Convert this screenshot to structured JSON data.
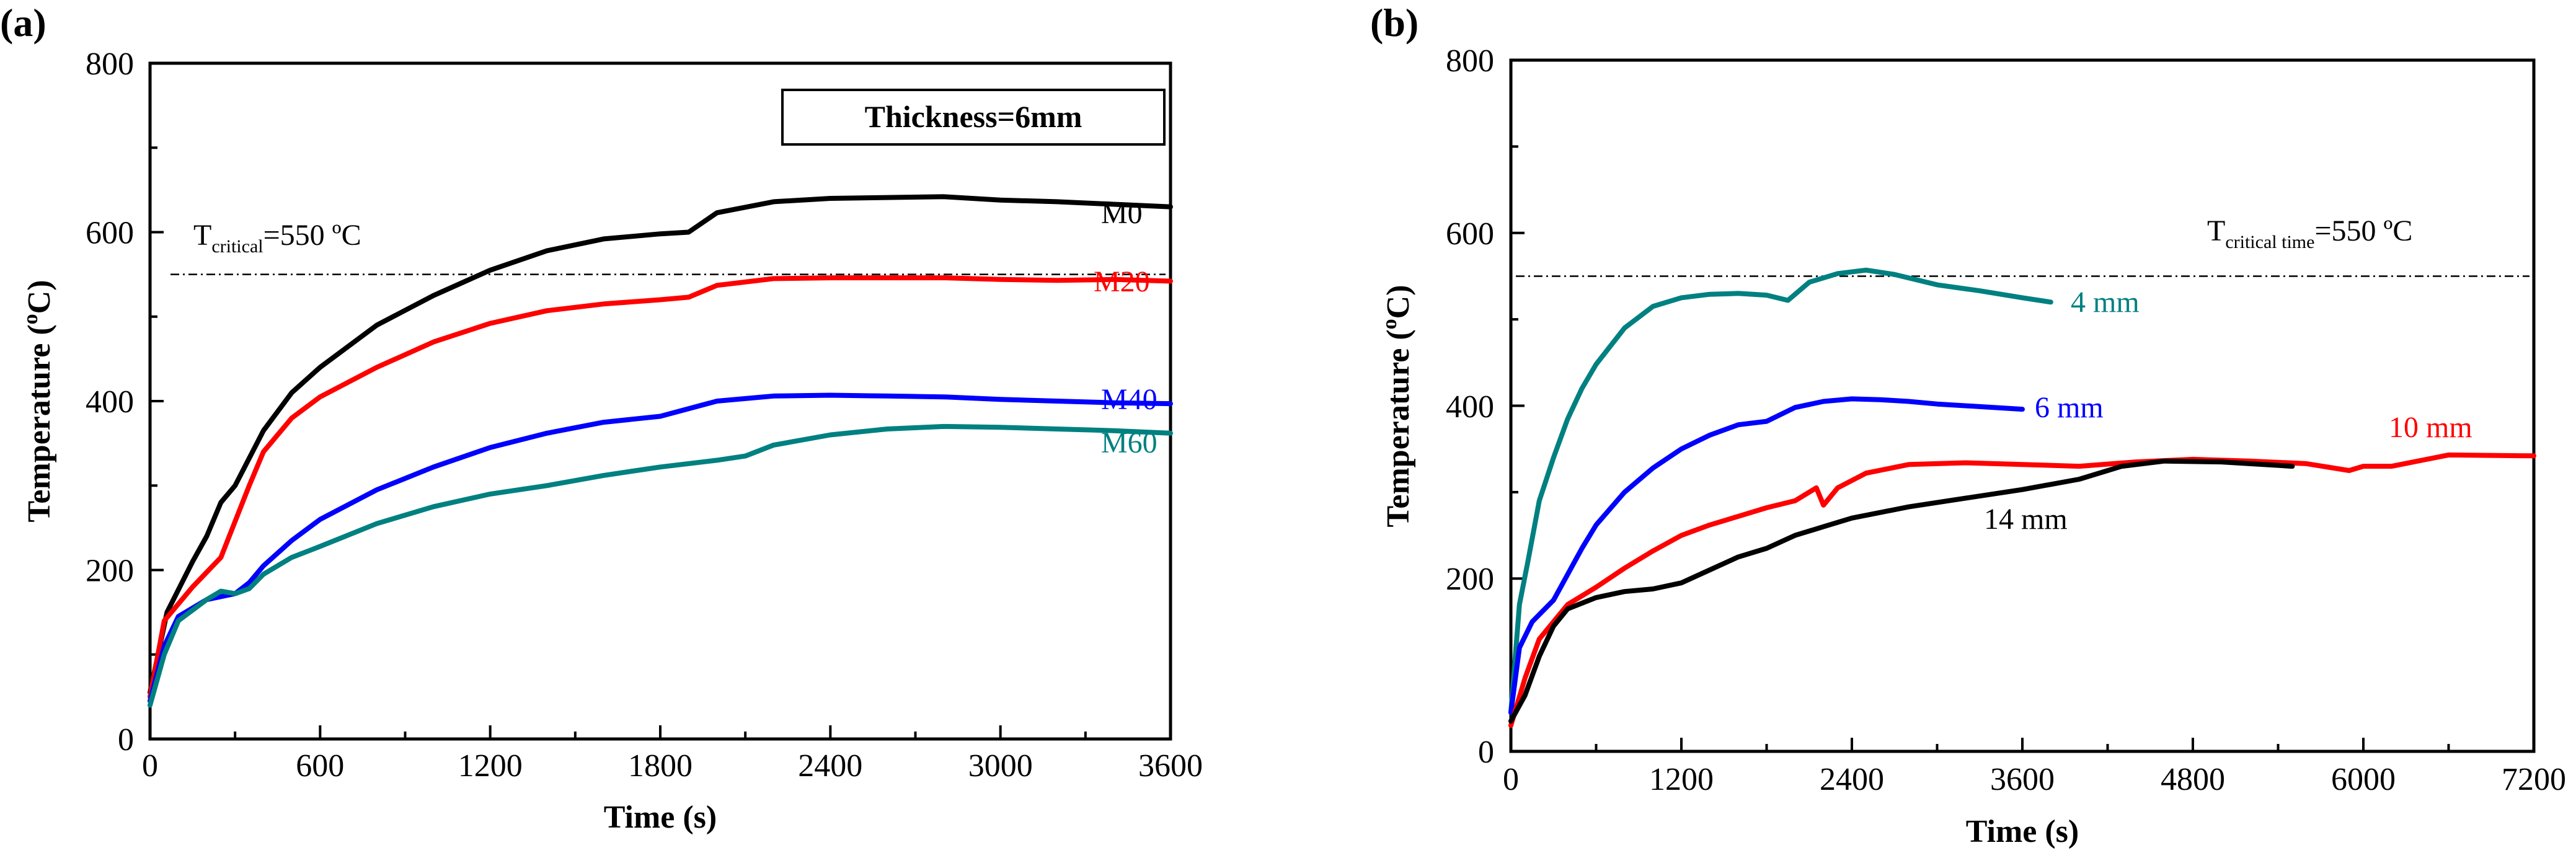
{
  "chart_data": [
    {
      "panel_label": "(a)",
      "type": "line",
      "xlabel": "Time (s)",
      "ylabel": {
        "prefix": "Temperature (",
        "sup": "o",
        "suffix": "C)"
      },
      "xlim": [
        0,
        3600
      ],
      "ylim": [
        0,
        800
      ],
      "xticks": [
        "0",
        "600",
        "1200",
        "1800",
        "2400",
        "3000",
        "3600"
      ],
      "yticks": [
        "0",
        "200",
        "400",
        "600",
        "800"
      ],
      "box_text": "Thickness=6mm",
      "critical": {
        "t": "T",
        "sub": "critical",
        "rest": "=550 ºC",
        "value": 550
      },
      "series": [
        {
          "name": "M0",
          "color": "#000000",
          "x": [
            0,
            60,
            150,
            200,
            250,
            300,
            400,
            500,
            600,
            800,
            1000,
            1200,
            1400,
            1600,
            1800,
            1900,
            2000,
            2200,
            2400,
            2600,
            2800,
            3000,
            3200,
            3400,
            3600
          ],
          "y": [
            55,
            150,
            210,
            240,
            280,
            300,
            365,
            410,
            440,
            490,
            525,
            555,
            578,
            592,
            598,
            600,
            623,
            636,
            640,
            641,
            642,
            638,
            636,
            633,
            630
          ]
        },
        {
          "name": "M20",
          "color": "#ff0000",
          "x": [
            0,
            50,
            150,
            250,
            350,
            400,
            500,
            600,
            800,
            1000,
            1200,
            1400,
            1600,
            1800,
            1900,
            2000,
            2200,
            2400,
            2600,
            2800,
            3000,
            3200,
            3400,
            3600
          ],
          "y": [
            50,
            140,
            180,
            215,
            300,
            340,
            380,
            405,
            440,
            470,
            492,
            507,
            515,
            520,
            523,
            537,
            545,
            546,
            546,
            546,
            544,
            543,
            544,
            542
          ]
        },
        {
          "name": "M40",
          "color": "#0000ff",
          "x": [
            0,
            50,
            100,
            200,
            300,
            350,
            400,
            500,
            600,
            800,
            1000,
            1200,
            1400,
            1600,
            1800,
            2000,
            2200,
            2400,
            2600,
            2800,
            3000,
            3200,
            3400,
            3600
          ],
          "y": [
            45,
            110,
            145,
            165,
            172,
            185,
            205,
            235,
            260,
            295,
            322,
            345,
            362,
            375,
            382,
            400,
            406,
            407,
            406,
            405,
            402,
            400,
            398,
            397
          ]
        },
        {
          "name": "M60",
          "color": "#008080",
          "x": [
            0,
            50,
            100,
            200,
            250,
            300,
            350,
            400,
            500,
            600,
            800,
            1000,
            1200,
            1400,
            1600,
            1800,
            2000,
            2100,
            2200,
            2400,
            2600,
            2800,
            3000,
            3200,
            3400,
            3600
          ],
          "y": [
            40,
            100,
            140,
            165,
            175,
            172,
            178,
            195,
            215,
            228,
            255,
            275,
            290,
            300,
            312,
            322,
            330,
            335,
            348,
            360,
            367,
            370,
            369,
            367,
            365,
            362
          ]
        }
      ]
    },
    {
      "panel_label": "(b)",
      "type": "line",
      "xlabel": "Time (s)",
      "ylabel": {
        "prefix": "Temperature (",
        "sup": "o",
        "suffix": "C)"
      },
      "xlim": [
        0,
        7200
      ],
      "ylim": [
        0,
        800
      ],
      "xticks": [
        "0",
        "1200",
        "2400",
        "3600",
        "4800",
        "6000",
        "7200"
      ],
      "yticks": [
        "0",
        "200",
        "400",
        "600",
        "800"
      ],
      "critical": {
        "t": "T",
        "sub": "critical time",
        "rest": "=550 ºC",
        "value": 550
      },
      "series": [
        {
          "name": "4 mm",
          "color": "#008080",
          "x": [
            0,
            60,
            120,
            200,
            300,
            400,
            500,
            600,
            800,
            1000,
            1200,
            1400,
            1600,
            1800,
            1950,
            2100,
            2300,
            2500,
            2700,
            3000,
            3300,
            3600,
            3800
          ],
          "y": [
            45,
            170,
            220,
            290,
            340,
            385,
            420,
            448,
            490,
            515,
            525,
            529,
            530,
            528,
            522,
            543,
            553,
            557,
            552,
            540,
            533,
            525,
            520
          ]
        },
        {
          "name": "6 mm",
          "color": "#0000ff",
          "x": [
            0,
            60,
            150,
            300,
            400,
            500,
            600,
            800,
            1000,
            1200,
            1400,
            1600,
            1800,
            2000,
            2200,
            2400,
            2600,
            2800,
            3000,
            3300,
            3600
          ],
          "y": [
            45,
            120,
            150,
            175,
            205,
            235,
            262,
            300,
            328,
            350,
            366,
            378,
            382,
            398,
            405,
            408,
            407,
            405,
            402,
            399,
            396
          ]
        },
        {
          "name": "10 mm",
          "color": "#ff0000",
          "x": [
            0,
            100,
            200,
            400,
            600,
            800,
            1000,
            1200,
            1400,
            1600,
            1800,
            2000,
            2150,
            2200,
            2300,
            2500,
            2800,
            3200,
            3600,
            4000,
            4400,
            4800,
            5200,
            5600,
            5900,
            6000,
            6200,
            6600,
            7200
          ],
          "y": [
            30,
            85,
            130,
            170,
            190,
            212,
            232,
            250,
            262,
            272,
            282,
            290,
            305,
            285,
            305,
            322,
            332,
            334,
            332,
            330,
            335,
            338,
            336,
            333,
            325,
            330,
            330,
            343,
            342
          ]
        },
        {
          "name": "14 mm",
          "color": "#000000",
          "x": [
            0,
            100,
            200,
            300,
            400,
            600,
            800,
            1000,
            1200,
            1400,
            1600,
            1800,
            2000,
            2200,
            2400,
            2800,
            3200,
            3600,
            4000,
            4300,
            4600,
            5000,
            5500
          ],
          "y": [
            35,
            65,
            110,
            145,
            165,
            178,
            185,
            188,
            195,
            210,
            225,
            235,
            250,
            260,
            270,
            283,
            293,
            303,
            315,
            330,
            336,
            335,
            330
          ]
        }
      ]
    }
  ]
}
